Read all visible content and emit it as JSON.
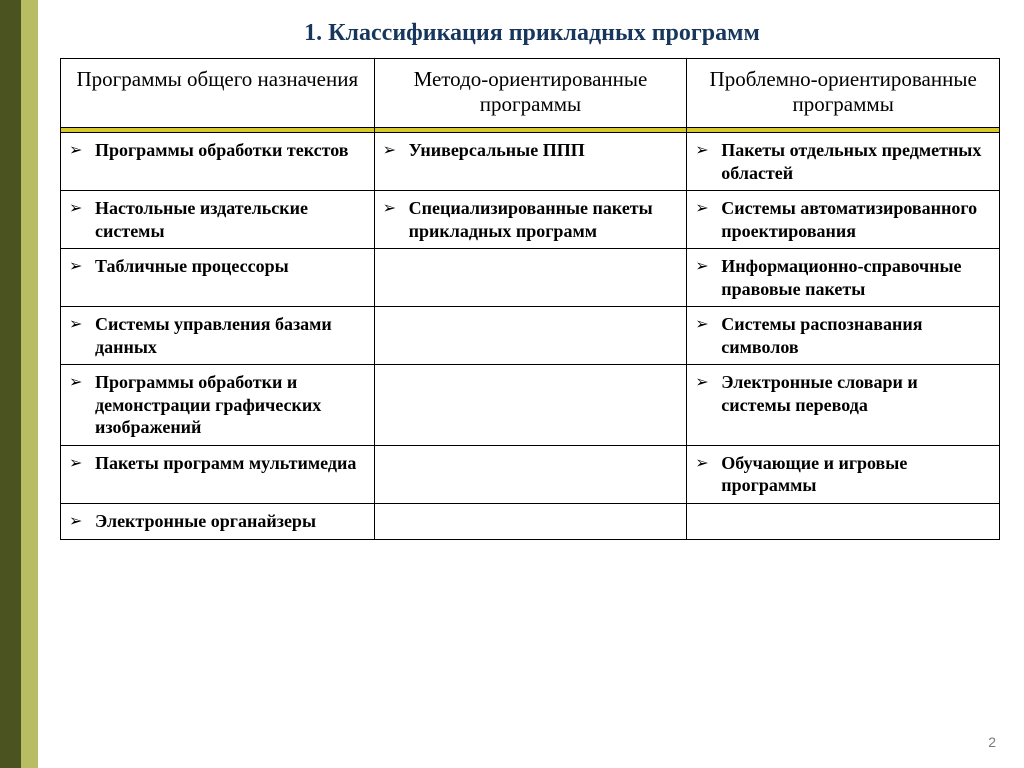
{
  "colors": {
    "title": "#17365d",
    "stripe_outer": "#4b5320",
    "stripe_inner": "#b8bc62",
    "yellow_rule": "#d7c92a",
    "border": "#000000",
    "text": "#000000",
    "pagenum": "#7f7f7f"
  },
  "title": "1. Классификация прикладных программ",
  "page_number": "2",
  "bullet_glyph": "➢",
  "table": {
    "col_widths_pct": [
      33.4,
      33.3,
      33.3
    ],
    "headers": [
      "Программы общего назначения",
      "Методо-ориентированные программы",
      "Проблемно-ориентированные программы"
    ],
    "rows": [
      [
        "Программы обработки текстов",
        "Универсальные ППП",
        "Пакеты отдельных предметных областей"
      ],
      [
        "Настольные издательские системы",
        "Специализированные пакеты прикладных программ",
        "Системы автоматизированного проектирования"
      ],
      [
        "Табличные процессоры",
        "",
        "Информационно-справочные правовые пакеты"
      ],
      [
        "Системы управления базами данных",
        "",
        "Системы распознавания символов"
      ],
      [
        "Программы обработки и демонстрации графических изображений",
        "",
        "Электронные словари и системы перевода"
      ],
      [
        "Пакеты программ мультимедиа",
        "",
        "Обучающие и игровые программы"
      ],
      [
        "Электронные органайзеры",
        "",
        ""
      ]
    ]
  }
}
